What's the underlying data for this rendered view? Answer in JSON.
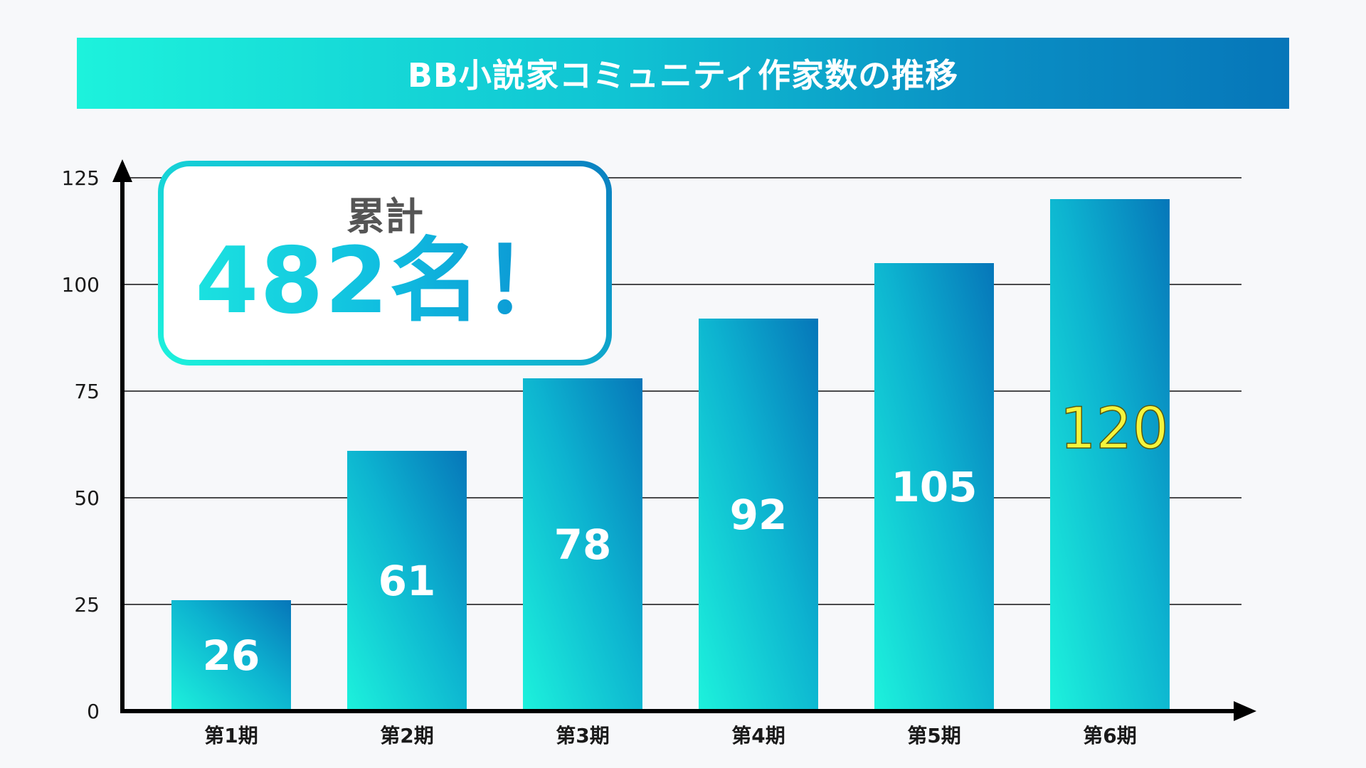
{
  "title": "BB小説家コミュニティ作家数の推移",
  "total_box": {
    "caption": "累計",
    "value": "482名！"
  },
  "chart_data": {
    "type": "bar",
    "title": "BB小説家コミュニティ作家数の推移",
    "categories": [
      "第1期",
      "第2期",
      "第3期",
      "第4期",
      "第5期",
      "第6期"
    ],
    "values": [
      26,
      61,
      78,
      92,
      105,
      120
    ],
    "data_labels": [
      "26",
      "61",
      "78",
      "92",
      "105",
      "120"
    ],
    "highlight_index": 5,
    "yticks": [
      "0",
      "25",
      "50",
      "75",
      "100",
      "125"
    ],
    "ylim": [
      0,
      125
    ],
    "xlabel": "",
    "ylabel": "",
    "grid": true,
    "legend": "none",
    "colors": {
      "bar_top": "#0676b9",
      "bar_bottom": "#1df2dc",
      "label": "#ffffff",
      "highlight_label": "#f5f53c",
      "gridline": "#111111"
    }
  }
}
